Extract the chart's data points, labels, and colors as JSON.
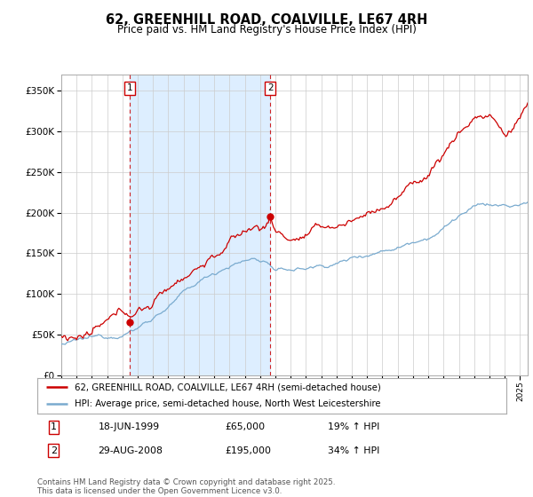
{
  "title": "62, GREENHILL ROAD, COALVILLE, LE67 4RH",
  "subtitle": "Price paid vs. HM Land Registry's House Price Index (HPI)",
  "red_label": "62, GREENHILL ROAD, COALVILLE, LE67 4RH (semi-detached house)",
  "blue_label": "HPI: Average price, semi-detached house, North West Leicestershire",
  "footnote": "Contains HM Land Registry data © Crown copyright and database right 2025.\nThis data is licensed under the Open Government Licence v3.0.",
  "transaction1": {
    "label": "1",
    "date": "18-JUN-1999",
    "price": "£65,000",
    "hpi": "19% ↑ HPI"
  },
  "transaction2": {
    "label": "2",
    "date": "29-AUG-2008",
    "price": "£195,000",
    "hpi": "34% ↑ HPI"
  },
  "vline1_year": 1999.46,
  "vline2_year": 2008.66,
  "marker1_value": 65000,
  "marker2_value": 195000,
  "ylim": [
    0,
    370000
  ],
  "xlim_start": 1995.0,
  "xlim_end": 2025.5,
  "yticks": [
    0,
    50000,
    100000,
    150000,
    200000,
    250000,
    300000,
    350000
  ],
  "background_color": "#ffffff",
  "red_color": "#cc0000",
  "blue_color": "#7aabcf",
  "shade_color": "#ddeeff"
}
